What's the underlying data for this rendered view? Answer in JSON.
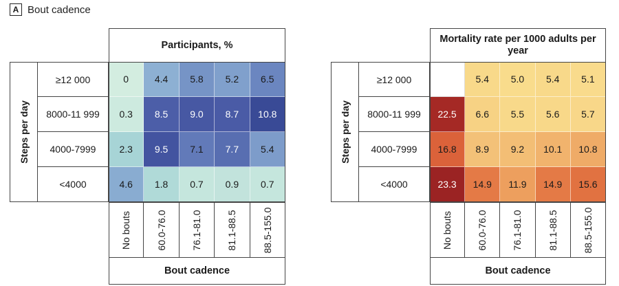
{
  "panel": {
    "letter": "A",
    "title": "Bout cadence"
  },
  "chart_data": [
    {
      "type": "heatmap",
      "title": "Participants, %",
      "ylabel": "Steps per day",
      "xlabel": "Bout cadence",
      "rows": [
        "≥12 000",
        "8000-11 999",
        "4000-7999",
        "<4000"
      ],
      "columns": [
        "No bouts",
        "60.0-76.0",
        "76.1-81.0",
        "81.1-88.5",
        "88.5-155.0"
      ],
      "values": [
        [
          0,
          4.4,
          5.8,
          5.2,
          6.5
        ],
        [
          0.3,
          8.5,
          9.0,
          8.7,
          10.8
        ],
        [
          2.3,
          9.5,
          7.1,
          7.7,
          5.4
        ],
        [
          4.6,
          1.8,
          0.7,
          0.9,
          0.7
        ]
      ],
      "labels": [
        [
          "0",
          "4.4",
          "5.8",
          "5.2",
          "6.5"
        ],
        [
          "0.3",
          "8.5",
          "9.0",
          "8.7",
          "10.8"
        ],
        [
          "2.3",
          "9.5",
          "7.1",
          "7.7",
          "5.4"
        ],
        [
          "4.6",
          "1.8",
          "0.7",
          "0.9",
          "0.7"
        ]
      ],
      "colorscale": [
        "#d3ede0",
        "#a9d6d6",
        "#8eb2d4",
        "#6b86c0",
        "#4a5ba6",
        "#394a96"
      ]
    },
    {
      "type": "heatmap",
      "title": "Mortality rate per 1000 adults per year",
      "ylabel": "Steps per day",
      "xlabel": "Bout cadence",
      "rows": [
        "≥12 000",
        "8000-11 999",
        "4000-7999",
        "<4000"
      ],
      "columns": [
        "No bouts",
        "60.0-76.0",
        "76.1-81.0",
        "81.1-88.5",
        "88.5-155.0"
      ],
      "values": [
        [
          null,
          5.4,
          5.0,
          5.4,
          5.1
        ],
        [
          22.5,
          6.6,
          5.5,
          5.6,
          5.7
        ],
        [
          16.8,
          8.9,
          9.2,
          10.1,
          10.8
        ],
        [
          23.3,
          14.9,
          11.9,
          14.9,
          15.6
        ]
      ],
      "labels": [
        [
          "",
          "5.4",
          "5.0",
          "5.4",
          "5.1"
        ],
        [
          "22.5",
          "6.6",
          "5.5",
          "5.6",
          "5.7"
        ],
        [
          "16.8",
          "8.9",
          "9.2",
          "10.1",
          "10.8"
        ],
        [
          "23.3",
          "14.9",
          "11.9",
          "14.9",
          "15.6"
        ]
      ],
      "colorscale": [
        "#f9dc8c",
        "#f4c47a",
        "#ec9a5a",
        "#e06d3e",
        "#c83d2b",
        "#9b2323"
      ]
    }
  ]
}
